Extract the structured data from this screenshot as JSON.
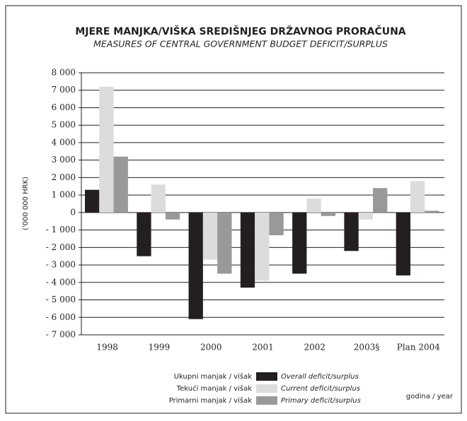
{
  "chart_data": {
    "type": "bar",
    "title": "MJERE MANJKA/VIŠKA SREDIŠNJEG DRŽAVNOG PRORAČUNA",
    "subtitle": "MEASURES OF CENTRAL GOVERNMENT BUDGET DEFICIT/SURPLUS",
    "y_label": "('000 000 HRK)",
    "x_label": "godina / year",
    "categories": [
      "1998",
      "1999",
      "2000",
      "2001",
      "2002",
      "2003§",
      "Plan 2004"
    ],
    "series": [
      {
        "name": "Overall deficit/surplus",
        "name_local": "Ukupni manjak / višak",
        "color": "#231f20",
        "values": [
          1300,
          -2500,
          -6100,
          -4300,
          -3500,
          -2200,
          -3600
        ]
      },
      {
        "name": "Current deficit/surplus",
        "name_local": "Tekući manjak / višak",
        "color": "#dcdcdc",
        "values": [
          7200,
          1600,
          -2700,
          -3900,
          800,
          -400,
          1800
        ]
      },
      {
        "name": "Primary deficit/surplus",
        "name_local": "Primarni manjak / višak",
        "color": "#999999",
        "values": [
          3200,
          -400,
          -3500,
          -1300,
          -200,
          1400,
          100
        ]
      }
    ],
    "ylim": [
      -7000,
      8000
    ],
    "yticks": [
      {
        "value": -7000,
        "label": "- 7 000"
      },
      {
        "value": -6000,
        "label": "- 6 000"
      },
      {
        "value": -5000,
        "label": "- 5 000"
      },
      {
        "value": -4000,
        "label": "- 4 000"
      },
      {
        "value": -3000,
        "label": "- 3 000"
      },
      {
        "value": -2000,
        "label": "- 2 000"
      },
      {
        "value": -1000,
        "label": "- 1 000"
      },
      0,
      {
        "value": 1000,
        "label": "1 000"
      },
      {
        "value": 2000,
        "label": "2 000"
      },
      {
        "value": 3000,
        "label": "3 000"
      },
      {
        "value": 4000,
        "label": "4 000"
      },
      {
        "value": 5000,
        "label": "5 000"
      },
      {
        "value": 6000,
        "label": "6 000"
      },
      {
        "value": 7000,
        "label": "7 000"
      },
      {
        "value": 8000,
        "label": "8 000"
      }
    ],
    "grid": true
  }
}
